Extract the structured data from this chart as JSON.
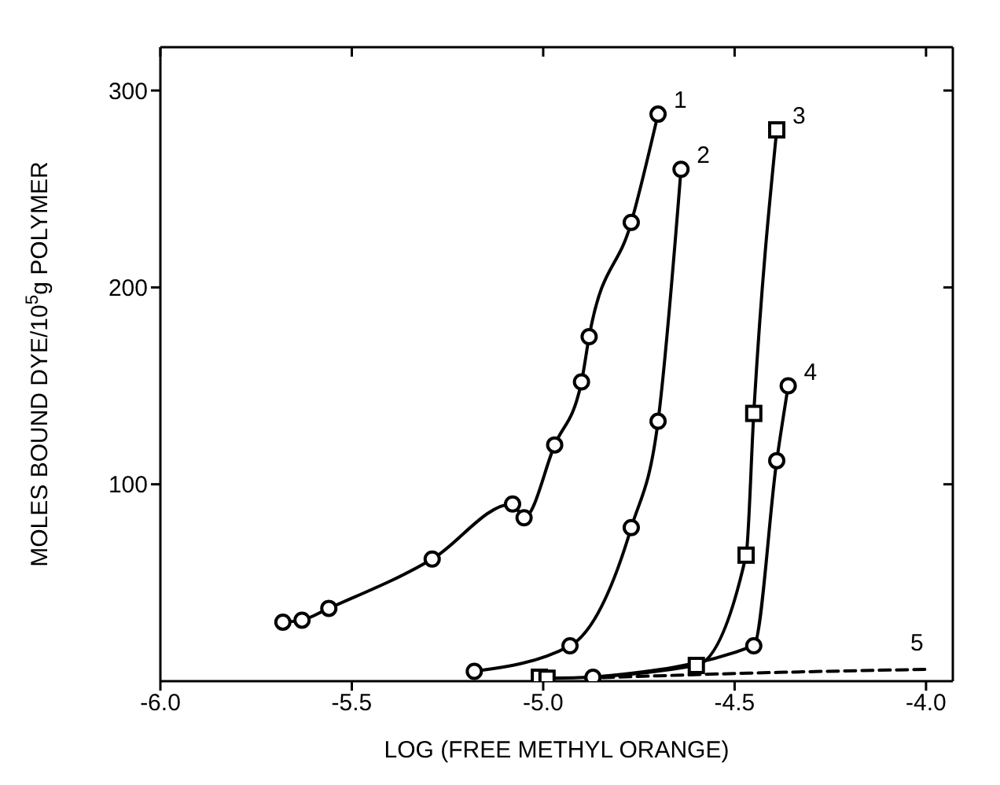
{
  "chart_data": {
    "type": "line",
    "xlabel": "LOG (FREE METHYL ORANGE)",
    "ylabel": "MOLES BOUND DYE/10$^{5}$g POLYMER",
    "xlim": [
      -6,
      -3.93
    ],
    "xticks": [
      {
        "value": -6,
        "label": "-6.0"
      },
      {
        "value": -5.5,
        "label": "-5.5"
      },
      {
        "value": -5,
        "label": "-5.0"
      },
      {
        "value": -4.5,
        "label": "-4.5"
      },
      {
        "value": -4,
        "label": "-4.0"
      }
    ],
    "ylim": [
      0,
      322
    ],
    "yticks": [
      100,
      200,
      300
    ],
    "series": [
      {
        "name": "1",
        "color": "#000000",
        "marker": "circle",
        "x": [
          -5.68,
          -5.63,
          -5.56,
          -5.29,
          -5.08,
          -5.05,
          -4.97,
          -4.9,
          -4.88,
          -4.77,
          -4.7
        ],
        "values": [
          30,
          31,
          37,
          62,
          90,
          83,
          120,
          152,
          175,
          233,
          288
        ]
      },
      {
        "name": "2",
        "color": "#000000",
        "marker": "circle",
        "x": [
          -5.18,
          -4.93,
          -4.77,
          -4.7,
          -4.64
        ],
        "values": [
          5,
          18,
          78,
          132,
          260
        ]
      },
      {
        "name": "3",
        "color": "#000000",
        "marker": "square",
        "x": [
          -5.01,
          -4.99,
          -4.6,
          -4.47,
          -4.45,
          -4.39
        ],
        "values": [
          2,
          1.5,
          8,
          64,
          136,
          280
        ]
      },
      {
        "name": "4",
        "color": "#000000",
        "marker": "circle",
        "x": [
          -4.87,
          -4.45,
          -4.39,
          -4.36
        ],
        "values": [
          2,
          18,
          112,
          150
        ]
      },
      {
        "name": "5",
        "color": "#000000",
        "marker": "none",
        "line_style": "dashed",
        "x": [
          -4.89,
          -4.48,
          -4.0
        ],
        "values": [
          1.5,
          4,
          6
        ]
      }
    ]
  }
}
